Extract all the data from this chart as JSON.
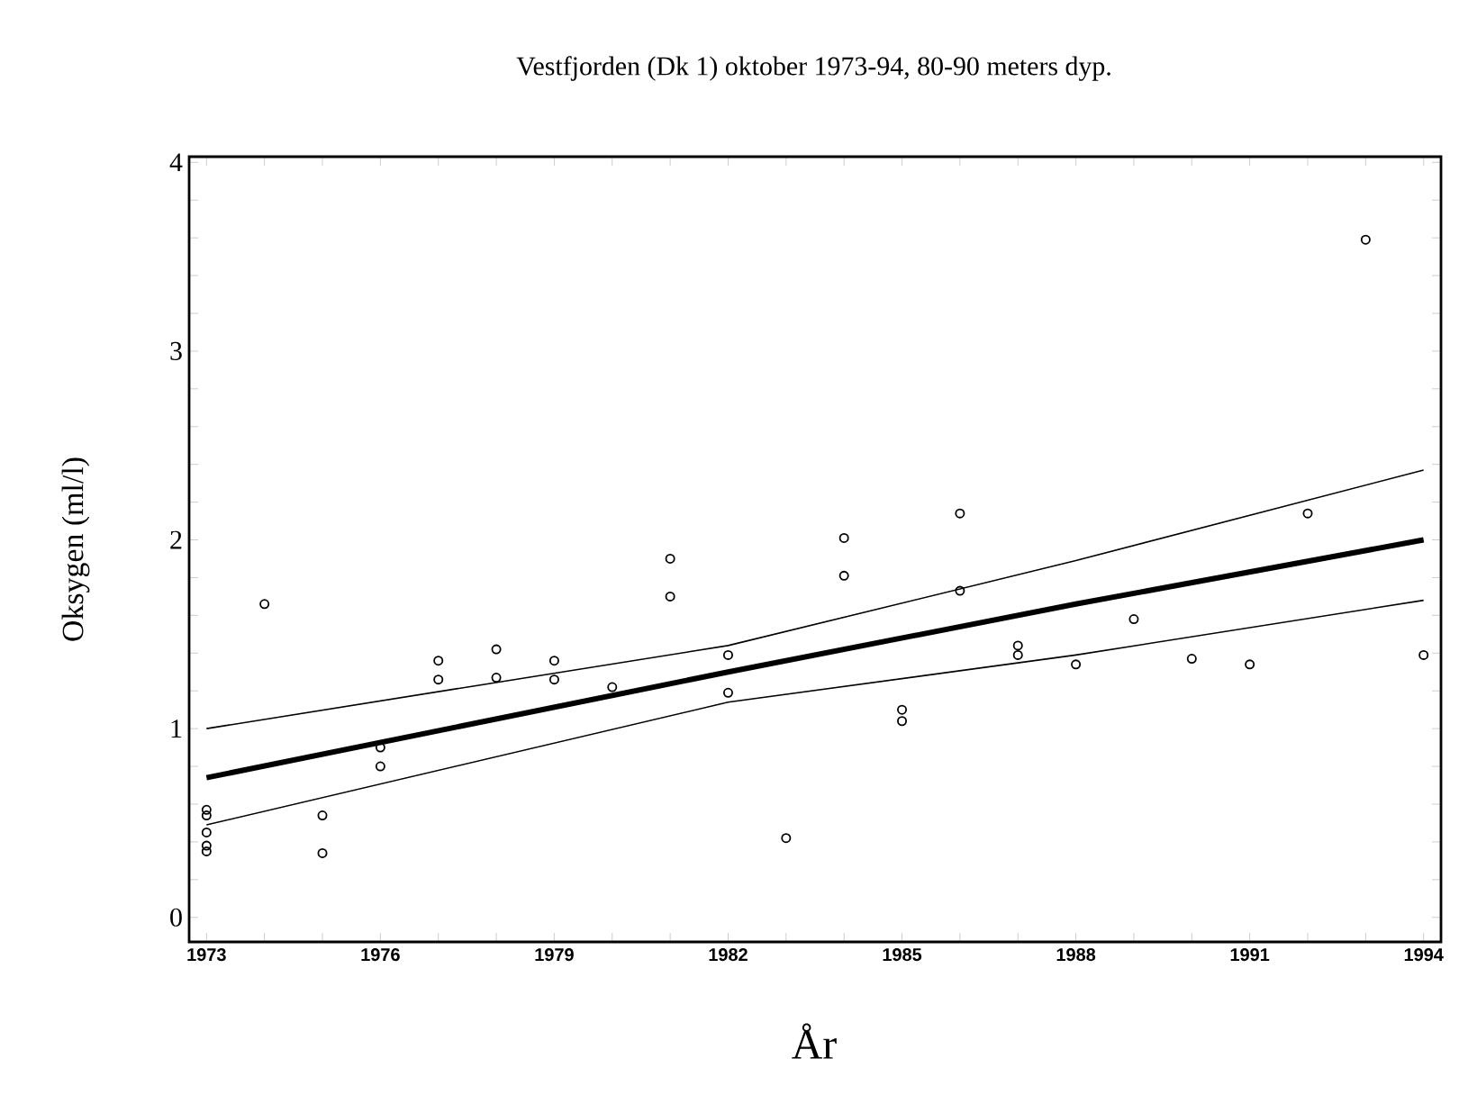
{
  "chart_data": {
    "type": "scatter",
    "title": "Vestfjorden (Dk 1) oktober 1973-94, 80-90 meters dyp.",
    "xlabel": "År",
    "ylabel": "Oksygen (ml/l)",
    "xlim": [
      1972.7,
      1994.3
    ],
    "ylim": [
      -0.13,
      4.03
    ],
    "xticks": [
      1973,
      {
        "value": 1974,
        "label": null
      },
      {
        "value": 1975,
        "label": null
      },
      1976,
      {
        "value": 1977,
        "label": null
      },
      {
        "value": 1978,
        "label": null
      },
      1979,
      {
        "value": 1980,
        "label": null
      },
      {
        "value": 1981,
        "label": null
      },
      1982,
      {
        "value": 1983,
        "label": null
      },
      {
        "value": 1984,
        "label": null
      },
      1985,
      {
        "value": 1986,
        "label": null
      },
      {
        "value": 1987,
        "label": null
      },
      1988,
      {
        "value": 1989,
        "label": null
      },
      {
        "value": 1990,
        "label": null
      },
      1991,
      {
        "value": 1992,
        "label": null
      },
      {
        "value": 1993,
        "label": null
      },
      1994
    ],
    "yticks": [
      0,
      {
        "value": 0.2,
        "label": null
      },
      {
        "value": 0.4,
        "label": null
      },
      {
        "value": 0.6,
        "label": null
      },
      {
        "value": 0.8,
        "label": null
      },
      1,
      {
        "value": 1.2,
        "label": null
      },
      {
        "value": 1.4,
        "label": null
      },
      {
        "value": 1.6,
        "label": null
      },
      {
        "value": 1.8,
        "label": null
      },
      2,
      {
        "value": 2.2,
        "label": null
      },
      {
        "value": 2.4,
        "label": null
      },
      {
        "value": 2.6,
        "label": null
      },
      {
        "value": 2.8,
        "label": null
      },
      3,
      {
        "value": 3.2,
        "label": null
      },
      {
        "value": 3.4,
        "label": null
      },
      {
        "value": 3.6,
        "label": null
      },
      {
        "value": 3.8,
        "label": null
      },
      4
    ],
    "grid": false,
    "series": [
      {
        "marker": "circle",
        "color": "#000000",
        "x": [
          1973,
          1973,
          1973,
          1973,
          1973,
          1974,
          1975,
          1975,
          1976,
          1976,
          1977,
          1977,
          1978,
          1978,
          1979,
          1979,
          1980,
          1981,
          1981,
          1982,
          1982,
          1983,
          1984,
          1984,
          1985,
          1985,
          1986,
          1986,
          1987,
          1987,
          1988,
          1989,
          1990,
          1991,
          1992,
          1993,
          1994
        ],
        "values": [
          0.57,
          0.54,
          0.45,
          0.38,
          0.35,
          1.66,
          0.54,
          0.34,
          0.8,
          0.9,
          1.36,
          1.26,
          1.42,
          1.27,
          1.36,
          1.26,
          1.22,
          1.9,
          1.7,
          1.39,
          1.19,
          0.42,
          2.01,
          1.81,
          1.1,
          1.04,
          2.14,
          1.73,
          1.44,
          1.39,
          1.34,
          1.58,
          1.37,
          1.34,
          2.14,
          3.59,
          1.39
        ]
      },
      {
        "type": "line",
        "marker": "none",
        "line_style": "solid",
        "color": "#000000",
        "x": [
          1973,
          1982,
          1988,
          1994
        ],
        "values": [
          0.74,
          1.3,
          1.66,
          2.0
        ]
      },
      {
        "type": "line",
        "marker": "none",
        "line_style": "solid",
        "color": "#000000",
        "x": [
          1973,
          1982,
          1988,
          1994
        ],
        "values": [
          1.0,
          1.44,
          1.89,
          2.37
        ]
      },
      {
        "type": "line",
        "marker": "none",
        "line_style": "solid",
        "color": "#000000",
        "x": [
          1973,
          1982,
          1988,
          1994
        ],
        "values": [
          0.49,
          1.14,
          1.39,
          1.68
        ]
      }
    ]
  }
}
